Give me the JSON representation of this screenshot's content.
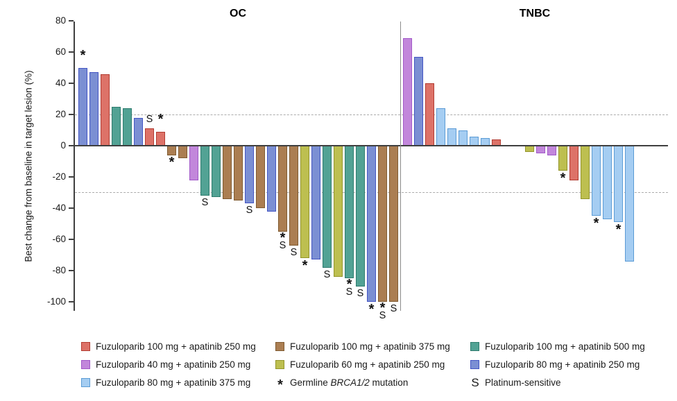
{
  "chart_data": {
    "type": "bar",
    "subtype": "waterfall",
    "title": "",
    "ylabel": "Best change from baseline in target lesion (%)",
    "ylim": [
      -100,
      80
    ],
    "yticks": [
      80,
      60,
      40,
      20,
      0,
      -20,
      -40,
      -60,
      -80,
      -100
    ],
    "reference_lines": [
      20,
      -30
    ],
    "grid": "off",
    "legend_position": "bottom",
    "marker_meanings": {
      "*": "Germline BRCA1/2 mutation",
      "S": "Platinum-sensitive"
    },
    "groups": {
      "red": "Fuzuloparib 100 mg + apatinib 250 mg",
      "brown": "Fuzuloparib 100 mg + apatinib 375 mg",
      "teal": "Fuzuloparib 100 mg + apatinib 500 mg",
      "orchid": "Fuzuloparib 40 mg + apatinib 250 mg",
      "ygreen": "Fuzuloparib 60 mg + apatinib 250 mg",
      "royal": "Fuzuloparib 80 mg + apatinib 250 mg",
      "sky": "Fuzuloparib 80 mg + apatinib 375 mg"
    },
    "panels": [
      {
        "title": "OC",
        "bars": [
          {
            "value": 50,
            "group": "royal",
            "mark": "*"
          },
          {
            "value": 47,
            "group": "royal"
          },
          {
            "value": 46,
            "group": "red"
          },
          {
            "value": 25,
            "group": "teal"
          },
          {
            "value": 24,
            "group": "teal"
          },
          {
            "value": 18,
            "group": "royal"
          },
          {
            "value": 11,
            "group": "red",
            "mark": "S"
          },
          {
            "value": 9,
            "group": "red",
            "mark": "*"
          },
          {
            "value": -6,
            "group": "brown",
            "mark": "*"
          },
          {
            "value": -8,
            "group": "brown"
          },
          {
            "value": -22,
            "group": "orchid"
          },
          {
            "value": -32,
            "group": "teal",
            "mark": "S"
          },
          {
            "value": -33,
            "group": "teal"
          },
          {
            "value": -34,
            "group": "brown"
          },
          {
            "value": -35,
            "group": "brown"
          },
          {
            "value": -37,
            "group": "royal",
            "mark": "S"
          },
          {
            "value": -40,
            "group": "brown"
          },
          {
            "value": -42,
            "group": "royal"
          },
          {
            "value": -55,
            "group": "brown",
            "mark": "*S"
          },
          {
            "value": -64,
            "group": "brown",
            "mark": "S"
          },
          {
            "value": -72,
            "group": "ygreen",
            "mark": "*"
          },
          {
            "value": -73,
            "group": "royal"
          },
          {
            "value": -78,
            "group": "teal",
            "mark": "S"
          },
          {
            "value": -84,
            "group": "ygreen"
          },
          {
            "value": -85,
            "group": "teal",
            "mark": "*S"
          },
          {
            "value": -90,
            "group": "teal",
            "mark": "S"
          },
          {
            "value": -100,
            "group": "royal",
            "mark": "*"
          },
          {
            "value": -100,
            "group": "brown",
            "mark": "*S"
          },
          {
            "value": -100,
            "group": "brown",
            "mark": "S"
          }
        ]
      },
      {
        "title": "TNBC",
        "bars": [
          {
            "value": 69,
            "group": "orchid"
          },
          {
            "value": 57,
            "group": "royal"
          },
          {
            "value": 40,
            "group": "red"
          },
          {
            "value": 24,
            "group": "sky"
          },
          {
            "value": 11,
            "group": "sky"
          },
          {
            "value": 10,
            "group": "sky"
          },
          {
            "value": 6,
            "group": "sky"
          },
          {
            "value": 5,
            "group": "sky"
          },
          {
            "value": 4,
            "group": "red"
          },
          {
            "value": 0,
            "group": null
          },
          {
            "value": 0,
            "group": null
          },
          {
            "value": -4,
            "group": "ygreen"
          },
          {
            "value": -5,
            "group": "orchid"
          },
          {
            "value": -6,
            "group": "orchid"
          },
          {
            "value": -16,
            "group": "ygreen",
            "mark": "*"
          },
          {
            "value": -22,
            "group": "red"
          },
          {
            "value": -34,
            "group": "ygreen"
          },
          {
            "value": -45,
            "group": "sky",
            "mark": "*"
          },
          {
            "value": -47,
            "group": "sky"
          },
          {
            "value": -49,
            "group": "sky",
            "mark": "*"
          },
          {
            "value": -74,
            "group": "sky"
          }
        ]
      }
    ]
  },
  "colors": {
    "red": {
      "fill": "#DD7268",
      "edge": "#B23B31"
    },
    "brown": {
      "fill": "#AB7E52",
      "edge": "#7F5A30"
    },
    "teal": {
      "fill": "#52A294",
      "edge": "#2E7C6E"
    },
    "orchid": {
      "fill": "#C287DB",
      "edge": "#A158C8"
    },
    "ygreen": {
      "fill": "#BDBF50",
      "edge": "#93952A"
    },
    "royal": {
      "fill": "#7B8FD3",
      "edge": "#4355C4"
    },
    "sky": {
      "fill": "#A5CDF2",
      "edge": "#5B9BD5"
    },
    "axis": "#3f3f3f",
    "divider": "#8c8c8c",
    "dashed": "#ababab"
  },
  "legend": {
    "items": [
      {
        "swatch": "red",
        "label": "Fuzuloparib 100 mg + apatinib 250 mg"
      },
      {
        "swatch": "brown",
        "label": "Fuzuloparib 100 mg + apatinib 375 mg"
      },
      {
        "swatch": "teal",
        "label": "Fuzuloparib 100 mg + apatinib 500 mg"
      },
      {
        "swatch": "orchid",
        "label": "Fuzuloparib 40 mg + apatinib 250 mg"
      },
      {
        "swatch": "ygreen",
        "label": "Fuzuloparib 60 mg + apatinib 250 mg"
      },
      {
        "swatch": "royal",
        "label": "Fuzuloparib 80 mg + apatinib 250 mg"
      },
      {
        "swatch": "sky",
        "label": "Fuzuloparib 80 mg + apatinib 375 mg"
      },
      {
        "symbol": "*",
        "label_parts": [
          "Germline ",
          "BRCA1/2",
          " mutation"
        ]
      },
      {
        "symbol": "S",
        "label": "Platinum-sensitive"
      }
    ]
  }
}
